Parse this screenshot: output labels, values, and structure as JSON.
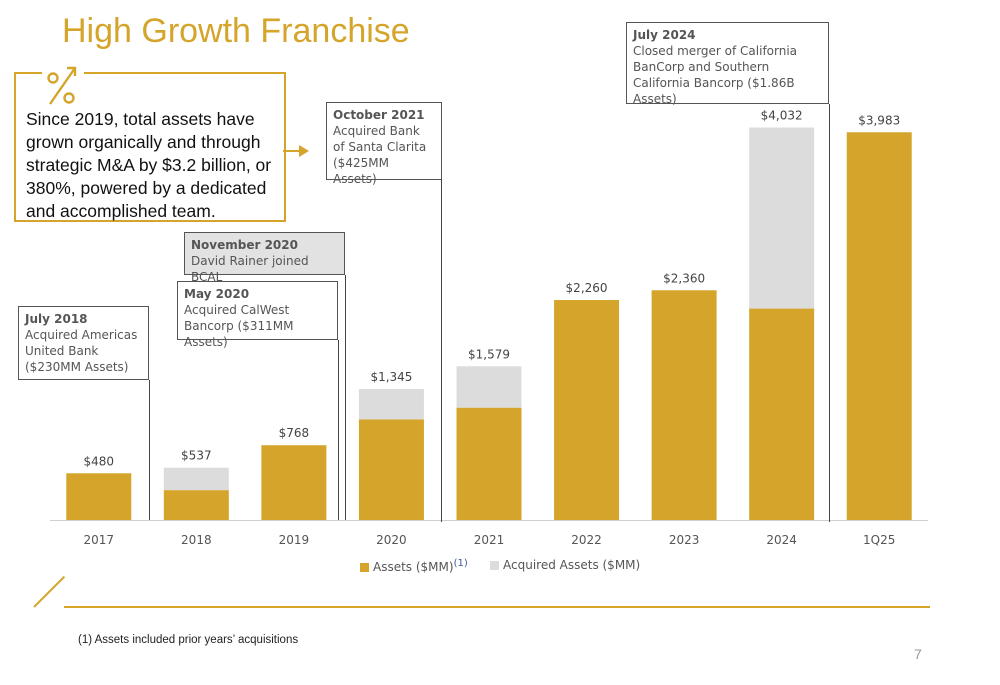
{
  "page": {
    "title": "High Growth Franchise",
    "callout": "Since 2019, total assets have grown organically and through strategic M&A by $3.2 billion, or 380%, powered by a dedicated and accomplished team.",
    "footnote": "(1)  Assets included prior years’ acquisitions",
    "page_number": "7",
    "icon": "percent-growth-icon"
  },
  "annotations": [
    {
      "heading": "July 2018",
      "text": "Acquired Americas United Bank ($230MM Assets)"
    },
    {
      "heading": "May 2020",
      "text": "Acquired CalWest Bancorp ($311MM Assets)"
    },
    {
      "heading": "November 2020",
      "text": "David Rainer joined BCAL"
    },
    {
      "heading": "October 2021",
      "text": "Acquired Bank of Santa Clarita ($425MM Assets)"
    },
    {
      "heading": "July 2024",
      "text": "Closed merger of California BanCorp and Southern California Bancorp ($1.86B Assets)"
    }
  ],
  "chart_data": {
    "type": "bar",
    "stacked": true,
    "categories": [
      "2017",
      "2018",
      "2019",
      "2020",
      "2021",
      "2022",
      "2023",
      "2024",
      "1Q25"
    ],
    "series": [
      {
        "name": "Assets ($MM)",
        "color": "#d4a52a",
        "values": [
          480,
          307,
          768,
          1034,
          1154,
          2260,
          2360,
          2172,
          3983
        ]
      },
      {
        "name": "Acquired Assets ($MM)",
        "color": "#dcdcdc",
        "values": [
          0,
          230,
          0,
          311,
          425,
          0,
          0,
          1860,
          0
        ]
      }
    ],
    "data_labels": [
      "$480",
      "$537",
      "$768",
      "$1,345",
      "$1,579",
      "$2,260",
      "$2,360",
      "$4,032",
      "$3,983"
    ],
    "legend_superscript": "(1)",
    "ylim": [
      0,
      4200
    ],
    "legend_position": "bottom",
    "grid": false
  }
}
